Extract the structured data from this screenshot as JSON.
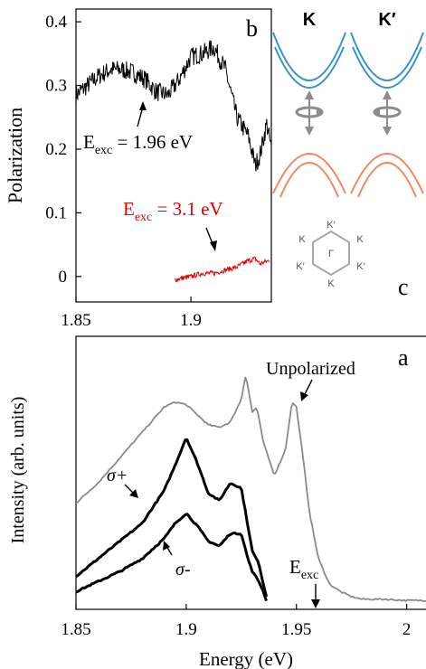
{
  "colors": {
    "noisy_trace": "#000000",
    "red_trace": "#e00000",
    "gray_trace": "#8a8a8a",
    "band_blue": "#3a93c8",
    "band_orange": "#ee8a62",
    "arrow_gray": "#8c8c8c"
  },
  "panel_b": {
    "letter": "b",
    "ylabel": "Polarization",
    "xticks": [
      "1.85",
      "1.9"
    ],
    "yticks": [
      "0",
      "0.1",
      "0.2",
      "0.3",
      "0.4"
    ],
    "label_196": {
      "E": "E",
      "sub": "exc",
      "rest": " = 1.96 eV"
    },
    "label_31": {
      "E": "E",
      "sub": "exc",
      "rest": " = 3.1 eV"
    }
  },
  "panel_c": {
    "letter": "c",
    "valley_k": "K",
    "valley_kprime": "K′",
    "center": "Γ",
    "hexagon_labels": [
      "K′",
      "K",
      "K′",
      "K",
      "K′",
      "K"
    ]
  },
  "panel_a": {
    "letter": "a",
    "ylabel": "Intensity (arb. units)",
    "xlabel": "Energy (eV)",
    "xticks": [
      "1.85",
      "1.9",
      "1.95",
      "2"
    ],
    "label_unpolarized": "Unpolarized",
    "label_sigma_plus": "σ+",
    "label_sigma_minus": "σ-",
    "label_eexc": {
      "E": "E",
      "sub": "exc"
    }
  },
  "chart_data": [
    {
      "panel": "b",
      "type": "line",
      "ylabel": "Polarization",
      "xlim": [
        1.85,
        1.935
      ],
      "ylim": [
        -0.04,
        0.42
      ],
      "grid": false,
      "series": [
        {
          "name": "Exc = 1.96 eV",
          "color": "#000000",
          "x": [
            1.85,
            1.855,
            1.86,
            1.865,
            1.87,
            1.875,
            1.88,
            1.885,
            1.89,
            1.895,
            1.9,
            1.905,
            1.91,
            1.915,
            1.92,
            1.925,
            1.928,
            1.93,
            1.933,
            1.935
          ],
          "y": [
            0.285,
            0.3,
            0.315,
            0.325,
            0.325,
            0.32,
            0.31,
            0.29,
            0.285,
            0.31,
            0.345,
            0.35,
            0.36,
            0.325,
            0.25,
            0.22,
            0.175,
            0.19,
            0.24,
            0.2
          ]
        },
        {
          "name": "Exc = 3.1 eV",
          "color": "#e00000",
          "x": [
            1.893,
            1.9,
            1.905,
            1.91,
            1.915,
            1.92,
            1.925,
            1.928,
            1.93,
            1.934
          ],
          "y": [
            -0.005,
            0.0,
            0.005,
            0.005,
            0.01,
            0.015,
            0.025,
            0.028,
            0.02,
            0.025
          ]
        }
      ]
    },
    {
      "panel": "a",
      "type": "line",
      "ylabel": "Intensity (arb. units)",
      "xlabel": "Energy (eV)",
      "xlim": [
        1.85,
        2.01
      ],
      "ylim": [
        0,
        1.08
      ],
      "grid": false,
      "series": [
        {
          "name": "Unpolarized",
          "color": "#8a8a8a",
          "x": [
            1.85,
            1.86,
            1.87,
            1.88,
            1.89,
            1.895,
            1.9,
            1.905,
            1.91,
            1.915,
            1.92,
            1.925,
            1.927,
            1.93,
            1.932,
            1.935,
            1.94,
            1.945,
            1.948,
            1.95,
            1.953,
            1.956,
            1.96,
            1.965,
            1.97,
            1.975,
            1.98,
            1.99,
            2.0,
            2.01
          ],
          "y": [
            0.42,
            0.5,
            0.6,
            0.7,
            0.8,
            0.82,
            0.81,
            0.77,
            0.73,
            0.72,
            0.74,
            0.83,
            0.93,
            0.78,
            0.8,
            0.66,
            0.53,
            0.63,
            0.82,
            0.8,
            0.6,
            0.38,
            0.2,
            0.1,
            0.07,
            0.05,
            0.04,
            0.04,
            0.035,
            0.035
          ]
        },
        {
          "name": "σ+",
          "color": "#000000",
          "x": [
            1.85,
            1.86,
            1.87,
            1.88,
            1.89,
            1.895,
            1.9,
            1.905,
            1.91,
            1.915,
            1.92,
            1.925,
            1.928,
            1.93,
            1.933,
            1.935,
            1.937
          ],
          "y": [
            0.13,
            0.2,
            0.27,
            0.34,
            0.47,
            0.57,
            0.68,
            0.58,
            0.46,
            0.43,
            0.5,
            0.48,
            0.33,
            0.23,
            0.18,
            0.1,
            0.03
          ]
        },
        {
          "name": "σ-",
          "color": "#000000",
          "x": [
            1.85,
            1.86,
            1.87,
            1.88,
            1.89,
            1.895,
            1.9,
            1.905,
            1.91,
            1.915,
            1.92,
            1.925,
            1.928,
            1.93,
            1.933,
            1.935,
            1.937
          ],
          "y": [
            0.07,
            0.11,
            0.15,
            0.2,
            0.28,
            0.34,
            0.38,
            0.33,
            0.27,
            0.25,
            0.3,
            0.3,
            0.2,
            0.15,
            0.11,
            0.07,
            0.02
          ]
        }
      ]
    }
  ]
}
